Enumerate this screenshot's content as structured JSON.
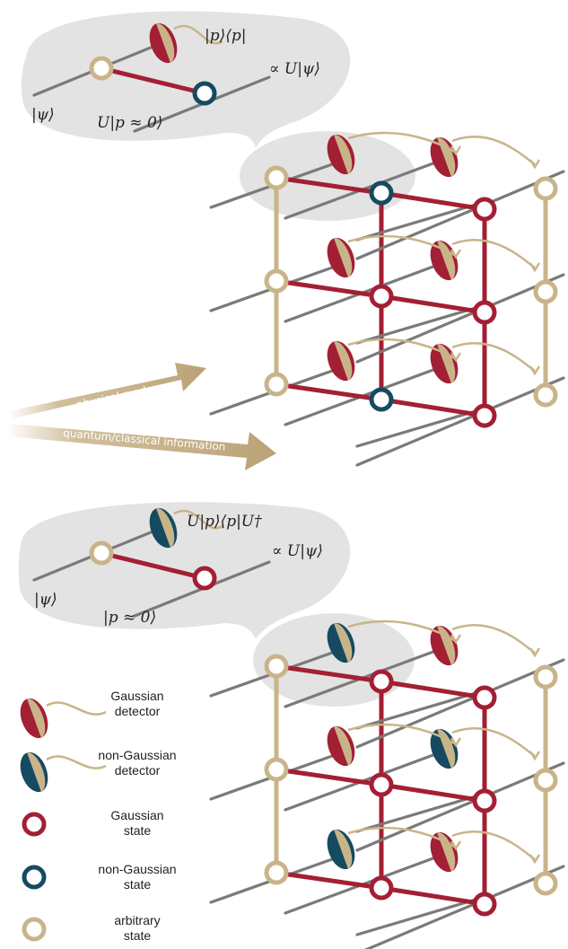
{
  "colors": {
    "gaussian": "#a31f34",
    "non_gaussian": "#154a61",
    "arbitrary": "#c9b48a",
    "wire": "#7a7a7a",
    "bubble": "#e3e3e3"
  },
  "top_panel": {
    "labels": {
      "projector": "|p⟩⟨p|",
      "output": "∝ U|ψ⟩",
      "input": "|ψ⟩",
      "ancilla": "U|p ≈ 0⟩"
    },
    "arrows": {
      "physical_modes": "physical modes",
      "information": "quantum/classical information"
    }
  },
  "bottom_panel": {
    "labels": {
      "projector": "U|p⟩⟨p|U†",
      "output": "∝ U|ψ⟩",
      "input": "|ψ⟩",
      "ancilla": "|p ≈ 0⟩"
    }
  },
  "legend": [
    {
      "icon": "gaussian-detector-icon",
      "line1": "Gaussian",
      "line2": "detector"
    },
    {
      "icon": "non-gaussian-detector-icon",
      "line1": "non-Gaussian",
      "line2": "detector"
    },
    {
      "icon": "gaussian-state-icon",
      "line1": "Gaussian",
      "line2": "state"
    },
    {
      "icon": "non-gaussian-state-icon",
      "line1": "non-Gaussian",
      "line2": "state"
    },
    {
      "icon": "arbitrary-state-icon",
      "line1": "arbitrary",
      "line2": "state"
    }
  ]
}
